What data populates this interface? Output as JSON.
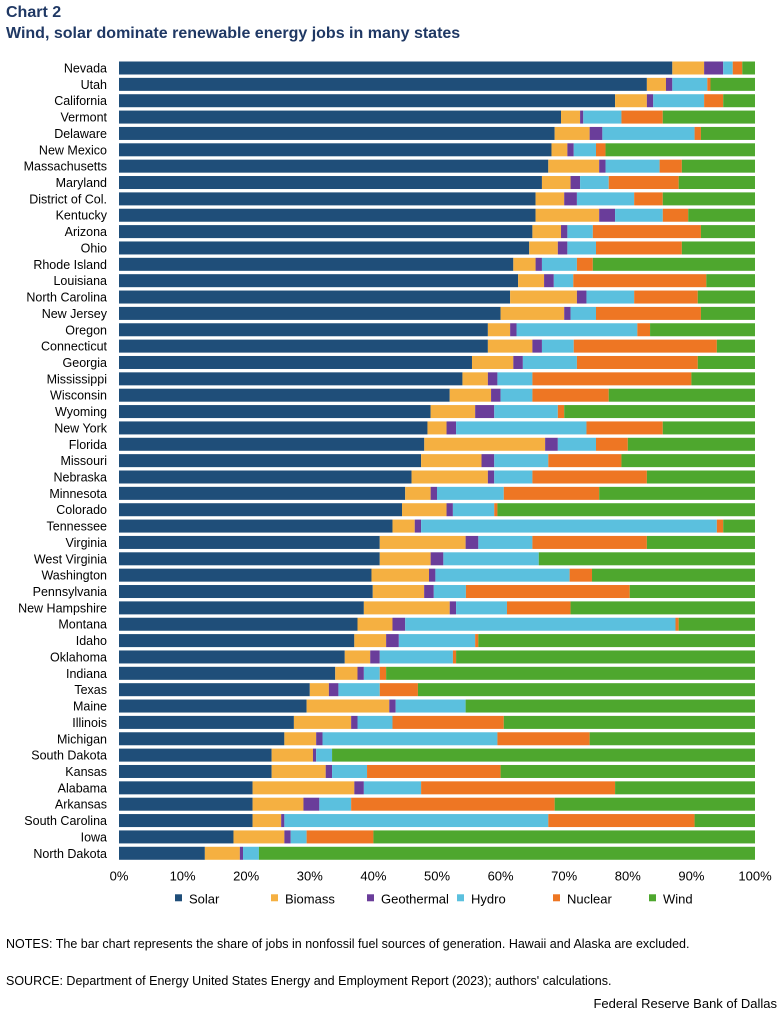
{
  "header": {
    "label": "Chart 2",
    "title": "Wind, solar dominate renewable energy jobs in many states"
  },
  "footer": {
    "notes": "NOTES:  The bar chart represents the share of jobs in nonfossil fuel sources of generation. Hawaii  and Alaska are excluded.",
    "source": "SOURCE:  Department of Energy United States Energy and Employment Report (2023); authors' calculations.",
    "credit": "Federal Reserve Bank of Dallas"
  },
  "chart_data": {
    "type": "bar",
    "orientation": "horizontal",
    "stacked": true,
    "title": "Wind, solar dominate renewable energy jobs in many states",
    "xlabel": "",
    "ylabel": "",
    "xlim": [
      0,
      100
    ],
    "x_ticks": [
      "0%",
      "10%",
      "20%",
      "30%",
      "40%",
      "50%",
      "60%",
      "70%",
      "80%",
      "90%",
      "100%"
    ],
    "legend_position": "bottom",
    "grid": false,
    "colors": {
      "Solar": "#1f4e79",
      "Biomass": "#f5b041",
      "Geothermal": "#6a3d9a",
      "Hydro": "#5bc0de",
      "Nuclear": "#ee7623",
      "Wind": "#4ea72e"
    },
    "categories": [
      "Nevada",
      "Utah",
      "California",
      "Vermont",
      "Delaware",
      "New Mexico",
      "Massachusetts",
      "Maryland",
      "District of Col.",
      "Kentucky",
      "Arizona",
      "Ohio",
      "Rhode Island",
      "Louisiana",
      "North Carolina",
      "New Jersey",
      "Oregon",
      "Connecticut",
      "Georgia",
      "Mississippi",
      "Wisconsin",
      "Wyoming",
      "New York",
      "Florida",
      "Missouri",
      "Nebraska",
      "Minnesota",
      "Colorado",
      "Tennessee",
      "Virginia",
      "West Virginia",
      "Washington",
      "Pennsylvania",
      "New Hampshire",
      "Montana",
      "Idaho",
      "Oklahoma",
      "Indiana",
      "Texas",
      "Maine",
      "Illinois",
      "Michigan",
      "South Dakota",
      "Kansas",
      "Alabama",
      "Arkansas",
      "South Carolina",
      "Iowa",
      "North Dakota"
    ],
    "series": [
      {
        "name": "Solar",
        "values": [
          87,
          83,
          78,
          69.5,
          68.5,
          68,
          67.5,
          66.5,
          65.5,
          65.5,
          65,
          64.5,
          62,
          61.5,
          61.5,
          60,
          58,
          58,
          55.5,
          54,
          52,
          49,
          48.5,
          48,
          47.5,
          46,
          45,
          44.5,
          43,
          41,
          41,
          39.5,
          39.5,
          38.5,
          37.5,
          37,
          35.5,
          34,
          30,
          29.5,
          27.5,
          26,
          24,
          24,
          21,
          21,
          21,
          18,
          13.5
        ]
      },
      {
        "name": "Biomass",
        "values": [
          5,
          3,
          5,
          3,
          5.5,
          2.5,
          8,
          4.5,
          4.5,
          10,
          4.5,
          4.5,
          3.5,
          4,
          10.5,
          10,
          3.5,
          7,
          6.5,
          4,
          6.5,
          7,
          3,
          19,
          9.5,
          12,
          4,
          7,
          3.5,
          13.5,
          8,
          9,
          8,
          13.5,
          5.5,
          5,
          4,
          3.5,
          3,
          13,
          9,
          5,
          6.5,
          8.5,
          16,
          8,
          4.5,
          8,
          5.5
        ]
      },
      {
        "name": "Geothermal",
        "values": [
          3,
          1,
          1,
          0.5,
          2,
          1,
          1,
          1.5,
          2,
          2.5,
          1,
          1.5,
          1,
          1.5,
          1.5,
          1,
          1,
          1.5,
          1.5,
          1.5,
          1.5,
          3,
          1.5,
          2,
          2,
          1,
          1,
          1,
          1,
          2,
          2,
          1,
          1.5,
          1,
          2,
          2,
          1.5,
          1,
          1.5,
          1,
          1,
          1,
          0.5,
          1,
          1.5,
          2.5,
          0.5,
          1,
          0.5
        ]
      },
      {
        "name": "Hydro",
        "values": [
          1.5,
          5.5,
          8,
          6,
          14.5,
          3.5,
          8.5,
          4.5,
          9,
          7.5,
          4,
          4.5,
          5.5,
          3,
          7.5,
          4,
          19,
          5,
          8.5,
          5.5,
          5,
          10,
          20.5,
          6,
          8.5,
          6,
          10.5,
          6.5,
          46.5,
          8.5,
          15,
          21,
          5,
          8,
          42.5,
          12,
          11.5,
          2.5,
          6.5,
          11,
          5.5,
          27.5,
          2.5,
          5.5,
          9,
          5,
          41.5,
          2.5,
          2.5
        ]
      },
      {
        "name": "Nuclear",
        "values": [
          1.5,
          0.5,
          3,
          6.5,
          1,
          1.5,
          3.5,
          11,
          4.5,
          4,
          17,
          13.5,
          2.5,
          20.5,
          10,
          16.5,
          2,
          22.5,
          19,
          25,
          12,
          1,
          12,
          5,
          11.5,
          18,
          15,
          0.5,
          1,
          18,
          0,
          3.5,
          25.5,
          10,
          0.5,
          0.5,
          0.5,
          1,
          6,
          0,
          17.5,
          14.5,
          0,
          21,
          30.5,
          32,
          23,
          10.5,
          0
        ]
      },
      {
        "name": "Wind",
        "values": [
          2,
          7,
          5,
          14.5,
          8.5,
          23.5,
          11.5,
          12,
          14.5,
          10.5,
          8.5,
          11.5,
          25.5,
          7.5,
          9,
          8.5,
          16.5,
          6,
          9,
          10,
          23,
          30,
          14.5,
          20,
          21,
          17,
          24.5,
          40.5,
          5,
          17,
          34,
          25.5,
          19.5,
          29,
          12,
          43.5,
          47,
          58,
          53,
          45.5,
          39.5,
          26,
          66.5,
          40,
          22,
          31.5,
          9.5,
          60,
          78
        ]
      }
    ]
  }
}
